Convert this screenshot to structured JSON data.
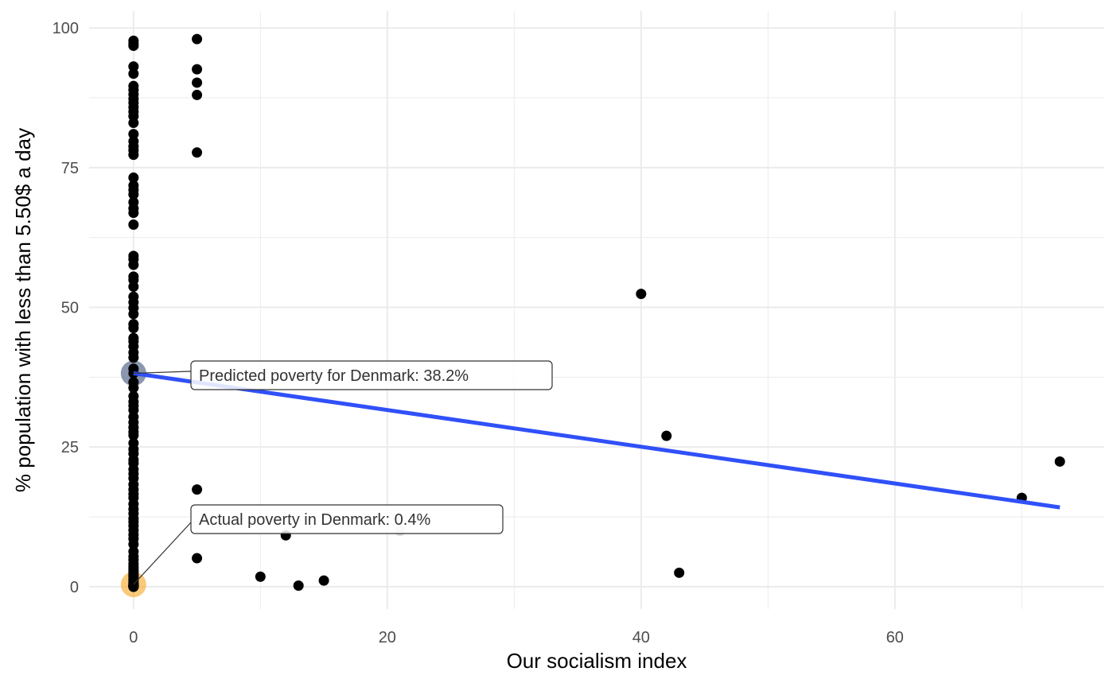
{
  "chart_data": {
    "type": "scatter",
    "xlabel": "Our socialism index",
    "ylabel": "% population with less than 5.50$ a day",
    "xlim": [
      -3.5,
      76.5
    ],
    "ylim": [
      -4,
      103
    ],
    "x_ticks": [
      0,
      20,
      40,
      60
    ],
    "x_tick_labels": [
      "0",
      "20",
      "40",
      "60"
    ],
    "x_minor": [
      10,
      30,
      50,
      70
    ],
    "y_ticks": [
      0,
      25,
      50,
      75,
      100
    ],
    "y_tick_labels": [
      "0",
      "25",
      "50",
      "75",
      "100"
    ],
    "y_minor": [
      12.5,
      37.5,
      62.5,
      87.5
    ],
    "grid": true,
    "series": [
      {
        "x": [
          0,
          0,
          0,
          0,
          0,
          0,
          0,
          0,
          0,
          0,
          0,
          0,
          0,
          0,
          0,
          0,
          0,
          0,
          0,
          0,
          0,
          0,
          0,
          0,
          0,
          0,
          0,
          0,
          0,
          0,
          0,
          0,
          0,
          0,
          0,
          0,
          0,
          0,
          0,
          0,
          0,
          0,
          0,
          0,
          0,
          0,
          0,
          0,
          0,
          0,
          0,
          0,
          0,
          0,
          0,
          0,
          0,
          0,
          0,
          0,
          0,
          0,
          0,
          0,
          0,
          0,
          0,
          0,
          0,
          0,
          0,
          0,
          0,
          0,
          0,
          0,
          0,
          0,
          0,
          0,
          0,
          0,
          0,
          0,
          0,
          0,
          0,
          0,
          0,
          0,
          0,
          0,
          0,
          0,
          0,
          0,
          0,
          0,
          0,
          0,
          0,
          0,
          0,
          0,
          5,
          5,
          5,
          5,
          5,
          5,
          5,
          10,
          12,
          13,
          15,
          40,
          42,
          43,
          70,
          73
        ],
        "y": [
          97.7,
          97.2,
          96.8,
          93.1,
          91.8,
          89.6,
          88.9,
          88.1,
          87.3,
          86.6,
          85.8,
          85.0,
          84.2,
          83.0,
          81.0,
          79.7,
          78.8,
          78.1,
          77.3,
          73.2,
          71.8,
          71.0,
          70.2,
          68.8,
          67.7,
          66.9,
          64.8,
          59.2,
          58.6,
          57.6,
          55.5,
          54.9,
          53.7,
          51.9,
          50.9,
          49.9,
          48.8,
          47.0,
          46.3,
          44.5,
          43.9,
          43.0,
          41.9,
          41.0,
          39.0,
          38.2,
          36.6,
          35.6,
          34.1,
          33.1,
          32.4,
          31.6,
          30.4,
          29.4,
          28.5,
          27.7,
          27.1,
          25.7,
          24.6,
          23.8,
          22.7,
          22.1,
          21.0,
          20.2,
          19.4,
          18.3,
          17.4,
          16.6,
          15.9,
          14.8,
          13.9,
          13.1,
          12.2,
          11.6,
          10.9,
          10.1,
          9.3,
          8.6,
          7.6,
          6.3,
          5.4,
          4.8,
          4.1,
          3.6,
          3.2,
          2.8,
          2.5,
          2.1,
          1.8,
          1.4,
          1.1,
          0.8,
          0.6,
          0.4,
          0.3,
          0.2,
          0.2,
          0.1,
          0.1,
          0.1,
          0.0,
          0.0,
          0.0,
          0.0,
          98.0,
          92.6,
          90.2,
          88.0,
          77.7,
          17.4,
          5.1,
          1.8,
          9.2,
          0.2,
          1.1,
          52.4,
          27.0,
          2.5,
          15.9,
          22.4
        ]
      },
      {
        "x": [
          21
        ],
        "y": [
          10.0
        ]
      }
    ],
    "regression_line": {
      "x": [
        0,
        73
      ],
      "y": [
        38.2,
        14.2
      ],
      "color": "#3050F8"
    },
    "residual_segment": {
      "x": [
        0,
        0
      ],
      "y": [
        0.4,
        38.2
      ],
      "color": "#8B1A1A"
    },
    "highlights": [
      {
        "x": 0,
        "y": 38.2,
        "color": "#3D5278"
      },
      {
        "x": 0,
        "y": 0.4,
        "color": "#F5A623"
      }
    ],
    "annotations": [
      {
        "text": "Predicted poverty for Denmark: 38.2%",
        "x": 0,
        "y": 38.2
      },
      {
        "text": "Actual poverty in Denmark: 0.4%",
        "x": 0,
        "y": 0.4
      }
    ],
    "colors": {
      "points": "#000000",
      "faded_point": "#D9D9D9",
      "grid": "#EBEBEB"
    }
  }
}
